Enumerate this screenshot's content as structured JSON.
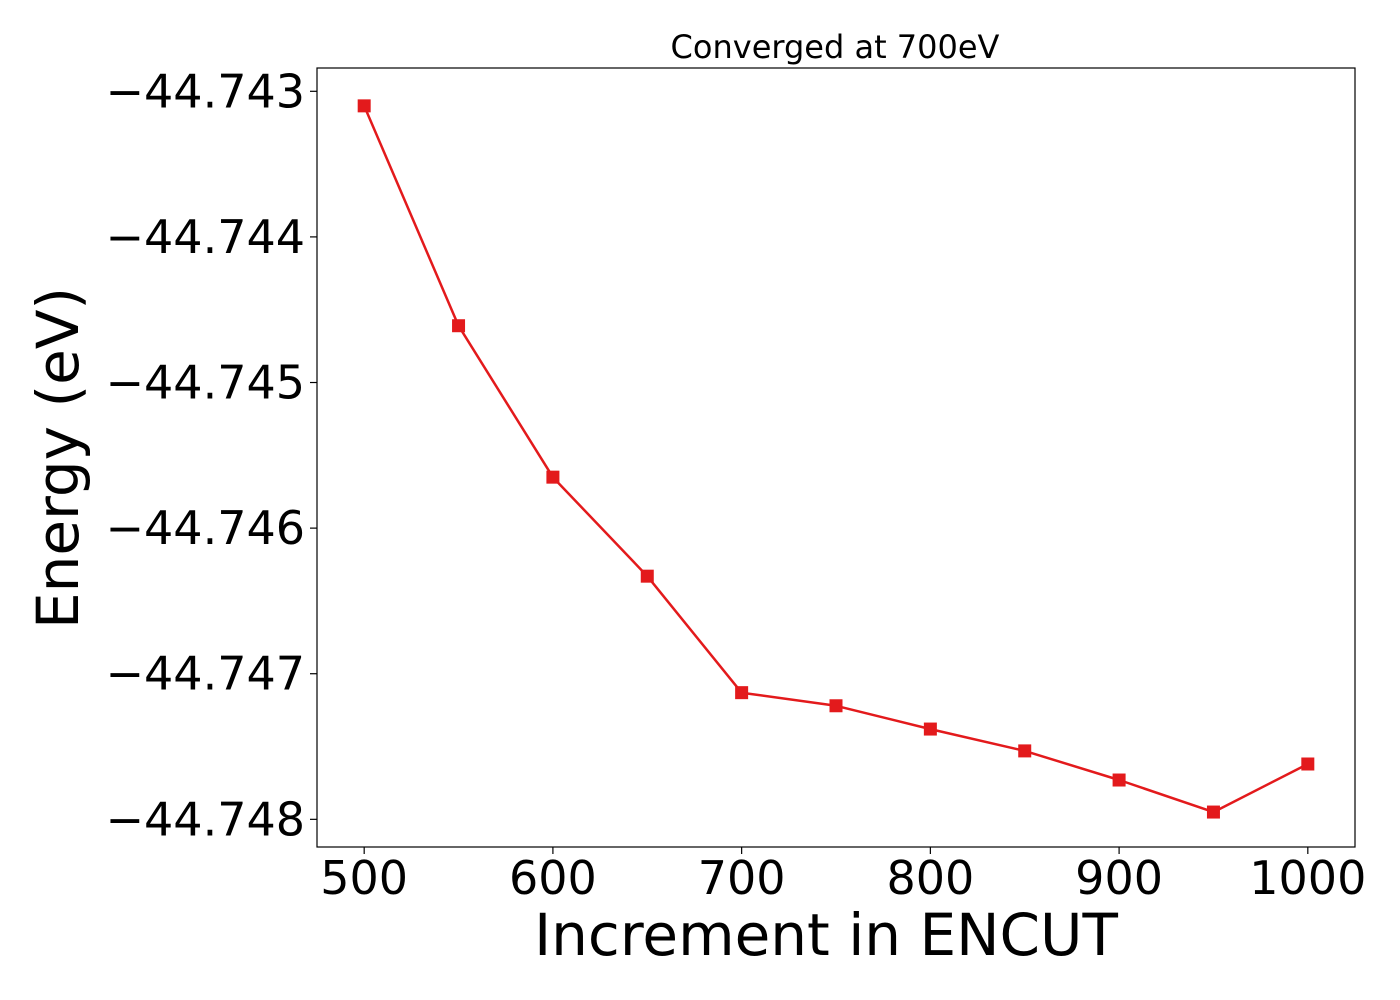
{
  "chart_data": {
    "type": "line",
    "title": "Converged at 700eV",
    "xlabel": "Increment in ENCUT",
    "ylabel": "Energy (eV)",
    "xlim": [
      475,
      1025
    ],
    "ylim": [
      -44.74819,
      -44.74284
    ],
    "x_ticks": [
      500,
      600,
      700,
      800,
      900,
      1000
    ],
    "x_tick_labels": [
      "500",
      "600",
      "700",
      "800",
      "900",
      "1000"
    ],
    "y_ticks": [
      -44.743,
      -44.744,
      -44.745,
      -44.746,
      -44.747,
      -44.748
    ],
    "y_tick_labels": [
      "−44.743",
      "−44.744",
      "−44.745",
      "−44.746",
      "−44.747",
      "−44.748"
    ],
    "grid": false,
    "legend": "none",
    "series": [
      {
        "color": "#e31a1c",
        "marker": "square",
        "x": [
          500,
          550,
          600,
          650,
          700,
          750,
          800,
          850,
          900,
          950,
          1000
        ],
        "y": [
          -44.7431,
          -44.74461,
          -44.74565,
          -44.74633,
          -44.74713,
          -44.74722,
          -44.74738,
          -44.74753,
          -44.74773,
          -44.74795,
          -44.74762
        ]
      }
    ]
  }
}
